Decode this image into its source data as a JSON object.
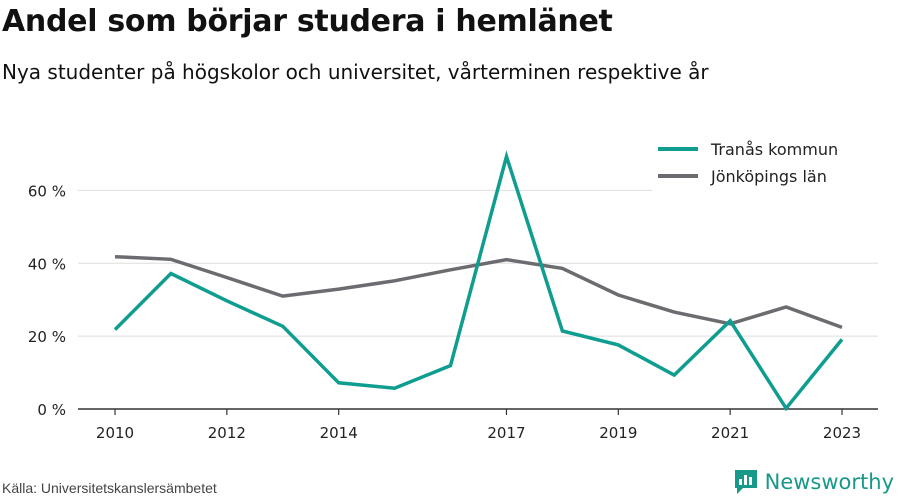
{
  "title": "Andel som börjar studera i hemlänet",
  "subtitle": "Nya studenter på högskolor och universitet, vårterminen respektive år",
  "source": "Källa: Universitetskanslersämbetet",
  "brand": {
    "name": "Newsworthy",
    "icon": "newsworthy-logo-icon",
    "color": "#189889"
  },
  "chart_data": {
    "type": "line",
    "title": "Andel som börjar studera i hemlänet",
    "subtitle": "Nya studenter på högskolor och universitet, vårterminen respektive år",
    "xlabel": "",
    "ylabel": "",
    "x": [
      2010,
      2011,
      2012,
      2013,
      2014,
      2015,
      2016,
      2017,
      2018,
      2019,
      2020,
      2021,
      2022,
      2023
    ],
    "x_ticks": [
      "2010",
      "2012",
      "2014",
      "2017",
      "2019",
      "2021",
      "2023"
    ],
    "y_ticks": [
      "0 %",
      "20 %",
      "40 %",
      "60 %"
    ],
    "ylim": [
      0,
      70
    ],
    "grid": true,
    "legend_position": "top-right",
    "series": [
      {
        "name": "Tranås kommun",
        "color": "#0f9d90",
        "values": [
          21.8,
          37.2,
          29.7,
          22.7,
          7.2,
          5.7,
          11.9,
          69.3,
          21.4,
          17.6,
          9.3,
          24.2,
          0.2,
          19.1
        ]
      },
      {
        "name": "Jönköpings län",
        "color": "#6c6b70",
        "values": [
          41.8,
          41.1,
          36.1,
          31.0,
          32.9,
          35.2,
          38.2,
          41.0,
          38.6,
          31.3,
          26.6,
          23.4,
          28.0,
          22.4
        ]
      }
    ]
  }
}
